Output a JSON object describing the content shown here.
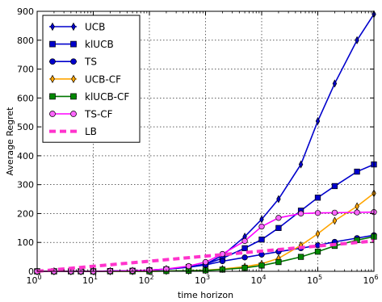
{
  "chart_data": {
    "type": "line",
    "title": "",
    "xlabel": "time horizon",
    "ylabel": "Average Regret",
    "x_scale": "log",
    "xlim": [
      1,
      1000000
    ],
    "ylim": [
      0,
      900
    ],
    "x_ticks": [
      {
        "value": 1,
        "mant": "10",
        "exp": "0"
      },
      {
        "value": 10,
        "mant": "10",
        "exp": "1"
      },
      {
        "value": 100,
        "mant": "10",
        "exp": "2"
      },
      {
        "value": 1000,
        "mant": "10",
        "exp": "3"
      },
      {
        "value": 10000,
        "mant": "10",
        "exp": "4"
      },
      {
        "value": 100000,
        "mant": "10",
        "exp": "5"
      },
      {
        "value": 1000000,
        "mant": "10",
        "exp": "6"
      }
    ],
    "y_ticks": [
      0,
      100,
      200,
      300,
      400,
      500,
      600,
      700,
      800,
      900
    ],
    "grid": true,
    "legend_position": "top-left",
    "series": [
      {
        "name": "UCB",
        "color": "#0000cc",
        "marker": "diamond",
        "fill": "#0000cc",
        "dashed": false,
        "x": [
          1,
          2,
          4,
          6,
          10,
          20,
          50,
          100,
          200,
          500,
          1000,
          2000,
          5000,
          10000,
          20000,
          50000,
          100000,
          200000,
          500000,
          1000000
        ],
        "y": [
          0,
          0,
          0,
          0,
          0,
          1,
          2,
          4,
          8,
          15,
          25,
          55,
          120,
          180,
          250,
          370,
          520,
          650,
          800,
          890
        ]
      },
      {
        "name": "klUCB",
        "color": "#0000cc",
        "marker": "square",
        "fill": "#0000cc",
        "dashed": false,
        "x": [
          1,
          2,
          4,
          6,
          10,
          20,
          50,
          100,
          200,
          500,
          1000,
          2000,
          5000,
          10000,
          20000,
          50000,
          100000,
          200000,
          500000,
          1000000
        ],
        "y": [
          0,
          0,
          0,
          0,
          0,
          1,
          2,
          4,
          7,
          15,
          25,
          45,
          80,
          110,
          150,
          210,
          255,
          295,
          345,
          370
        ]
      },
      {
        "name": "TS",
        "color": "#0000cc",
        "marker": "circle",
        "fill": "#0000cc",
        "dashed": false,
        "x": [
          1,
          2,
          4,
          6,
          10,
          20,
          50,
          100,
          200,
          500,
          1000,
          2000,
          5000,
          10000,
          20000,
          50000,
          100000,
          200000,
          500000,
          1000000
        ],
        "y": [
          0,
          0,
          0,
          0,
          0,
          1,
          2,
          4,
          7,
          14,
          22,
          35,
          48,
          58,
          68,
          80,
          90,
          102,
          115,
          125
        ]
      },
      {
        "name": "UCB-CF",
        "color": "#ffa500",
        "marker": "diamond",
        "fill": "#ffa500",
        "dashed": false,
        "x": [
          1,
          2,
          4,
          6,
          10,
          20,
          50,
          100,
          200,
          500,
          1000,
          2000,
          5000,
          10000,
          20000,
          50000,
          100000,
          200000,
          500000,
          1000000
        ],
        "y": [
          0,
          0,
          0,
          0,
          0,
          0,
          0,
          0,
          1,
          2,
          4,
          8,
          16,
          26,
          45,
          90,
          130,
          175,
          225,
          270
        ]
      },
      {
        "name": "klUCB-CF",
        "color": "#007700",
        "marker": "square",
        "fill": "#008800",
        "dashed": false,
        "x": [
          1,
          2,
          4,
          6,
          10,
          20,
          50,
          100,
          200,
          500,
          1000,
          2000,
          5000,
          10000,
          20000,
          50000,
          100000,
          200000,
          500000,
          1000000
        ],
        "y": [
          0,
          0,
          0,
          0,
          0,
          0,
          0,
          0,
          1,
          2,
          3,
          6,
          12,
          20,
          32,
          50,
          68,
          88,
          108,
          120
        ]
      },
      {
        "name": "TS-CF",
        "color": "#ff00ff",
        "marker": "circle",
        "fill": "#ff66ff",
        "dashed": false,
        "x": [
          1,
          2,
          4,
          6,
          10,
          20,
          50,
          100,
          200,
          500,
          1000,
          2000,
          5000,
          10000,
          20000,
          50000,
          100000,
          200000,
          500000,
          1000000
        ],
        "y": [
          0,
          0,
          0,
          0,
          0,
          1,
          2,
          4,
          8,
          18,
          32,
          60,
          105,
          155,
          185,
          200,
          202,
          203,
          204,
          205
        ]
      },
      {
        "name": "LB",
        "color": "#ff33cc",
        "marker": "none",
        "fill": "none",
        "dashed": true,
        "x": [
          1,
          1000000
        ],
        "y": [
          0,
          105
        ]
      }
    ]
  }
}
